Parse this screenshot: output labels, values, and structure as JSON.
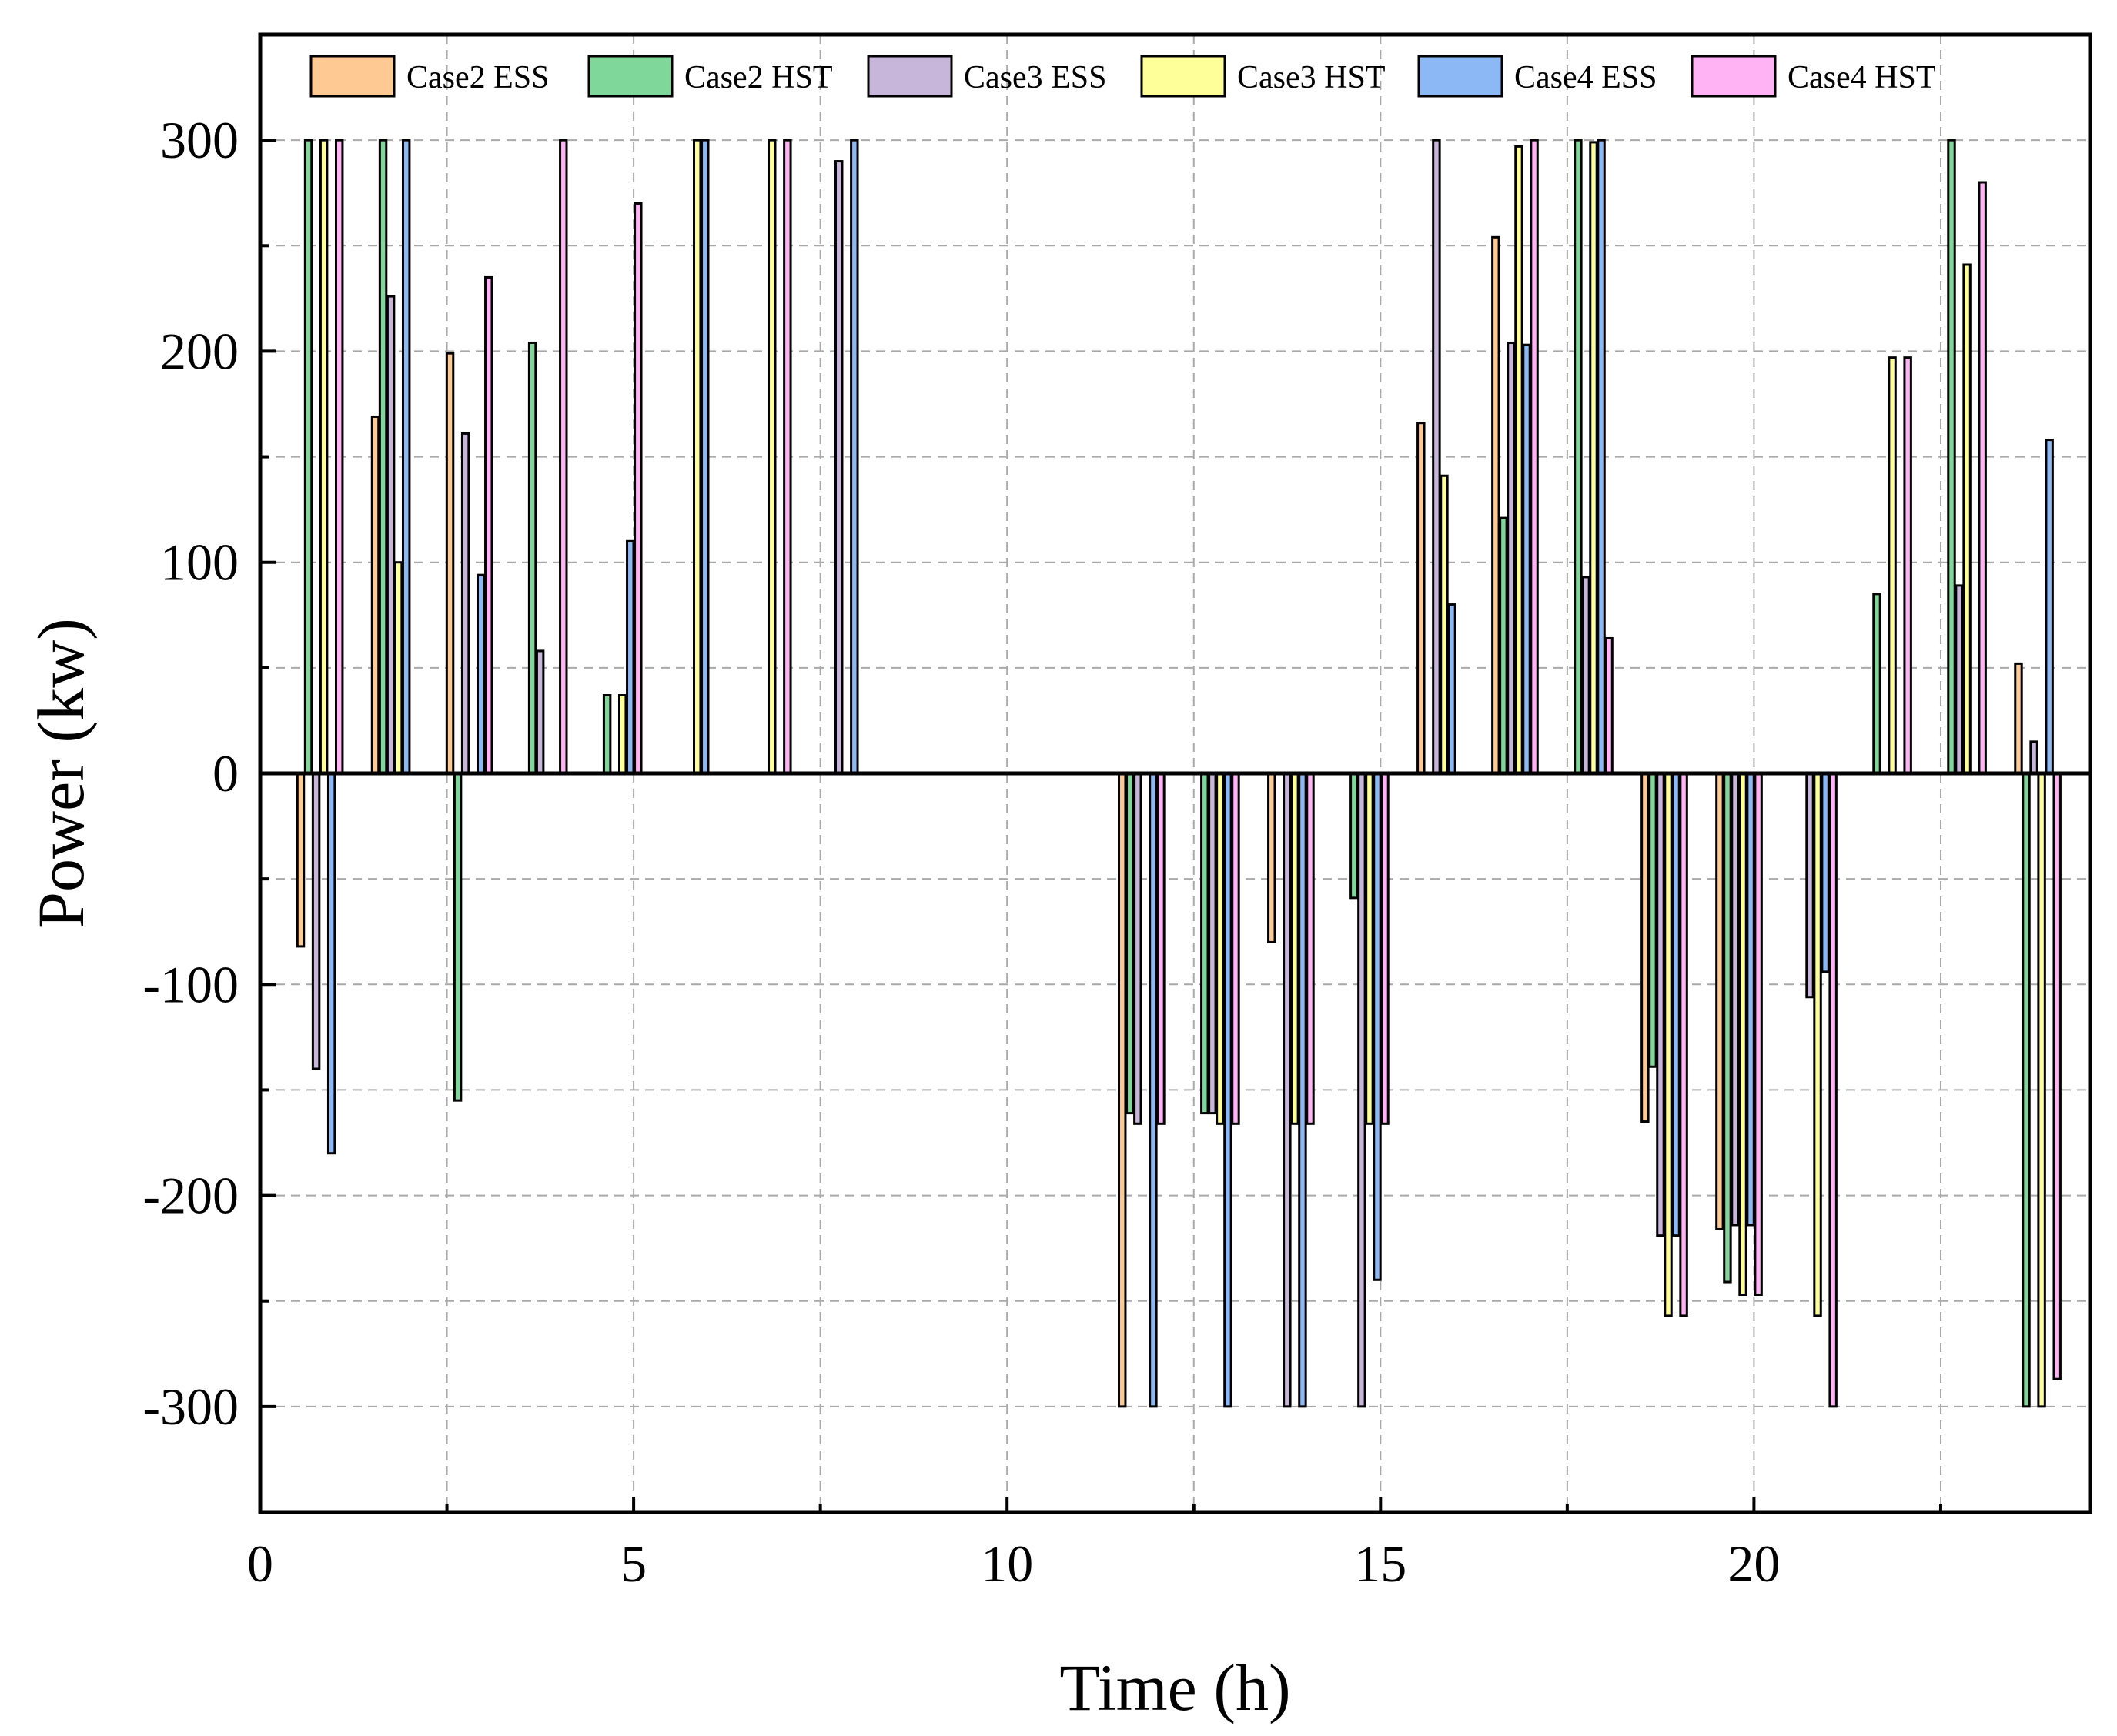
{
  "chart_data": {
    "type": "bar",
    "xlabel": "Time (h)",
    "ylabel": "Power (kw)",
    "xlim": [
      0,
      24.5
    ],
    "ylim": [
      -350,
      350
    ],
    "xticks": [
      0,
      5,
      10,
      15,
      20
    ],
    "xtick_labels": [
      "0",
      "5",
      "10",
      "15",
      "20"
    ],
    "yticks": [
      -300,
      -200,
      -100,
      0,
      100,
      200,
      300
    ],
    "ytick_labels": [
      "-300",
      "-200",
      "-100",
      "0",
      "100",
      "200",
      "300"
    ],
    "grid": true,
    "legend_position": "top",
    "x": [
      1,
      2,
      3,
      4,
      5,
      6,
      7,
      8,
      9,
      10,
      11,
      12,
      13,
      14,
      15,
      16,
      17,
      18,
      19,
      20,
      21,
      22,
      23,
      24
    ],
    "series": [
      {
        "name": "Case2 ESS",
        "color": "#FFC993",
        "values": [
          -82,
          169,
          199,
          0,
          0,
          0,
          0,
          0,
          0,
          0,
          0,
          -300,
          0,
          -80,
          0,
          166,
          254,
          0,
          -165,
          -216,
          0,
          0,
          0,
          52
        ]
      },
      {
        "name": "Case2 HST",
        "color": "#7FD89A",
        "values": [
          300,
          300,
          -155,
          204,
          37,
          0,
          0,
          0,
          0,
          0,
          0,
          -161,
          -161,
          0,
          -59,
          0,
          121,
          300,
          -139,
          -241,
          0,
          85,
          300,
          -300
        ]
      },
      {
        "name": "Case3 ESS",
        "color": "#C7B5DA",
        "values": [
          -140,
          226,
          161,
          58,
          0,
          0,
          0,
          290,
          0,
          0,
          0,
          -166,
          -161,
          -300,
          -300,
          300,
          204,
          93,
          -219,
          -214,
          -106,
          0,
          89,
          15
        ]
      },
      {
        "name": "Case3 HST",
        "color": "#FFFF99",
        "values": [
          300,
          100,
          0,
          0,
          37,
          300,
          300,
          0,
          0,
          0,
          0,
          0,
          -166,
          -166,
          -166,
          141,
          297,
          299,
          -257,
          -247,
          -257,
          197,
          241,
          -300
        ]
      },
      {
        "name": "Case4 ESS",
        "color": "#8CB9F5",
        "values": [
          -180,
          300,
          94,
          0,
          110,
          300,
          0,
          300,
          0,
          0,
          0,
          -300,
          -300,
          -300,
          -240,
          80,
          203,
          300,
          -219,
          -214,
          -94,
          0,
          0,
          158
        ]
      },
      {
        "name": "Case4 HST",
        "color": "#FFB3F5",
        "values": [
          300,
          0,
          235,
          300,
          270,
          0,
          300,
          0,
          0,
          0,
          0,
          -166,
          -166,
          -166,
          -166,
          0,
          300,
          64,
          -257,
          -247,
          -300,
          197,
          280,
          -287
        ]
      }
    ]
  }
}
